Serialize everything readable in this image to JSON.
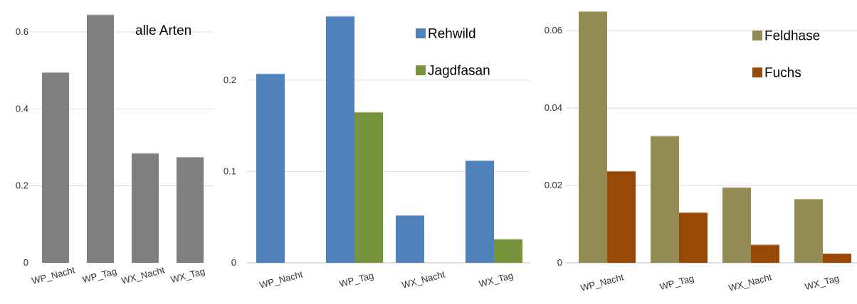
{
  "chart_data": [
    {
      "type": "bar",
      "categories": [
        "WP_Nacht",
        "WP_Tag",
        "WX_Nacht",
        "WX_Tag"
      ],
      "series": [
        {
          "name": "",
          "values": [
            0.495,
            0.645,
            0.285,
            0.275
          ],
          "color": "#7f7f7f"
        }
      ],
      "annotation": "alle Arten",
      "yticks": [
        "0",
        "0.2",
        "0.4",
        "0.6"
      ],
      "ytick_values": [
        0,
        0.2,
        0.4,
        0.6
      ],
      "ylim": [
        0,
        0.65
      ],
      "grid": true,
      "legend": "none"
    },
    {
      "type": "bar",
      "categories": [
        "WP_Nacht",
        "WP_Tag",
        "WX_Nacht",
        "WX_Tag"
      ],
      "series": [
        {
          "name": "Rehwild",
          "values": [
            0.207,
            0.27,
            0.052,
            0.112
          ],
          "color": "#4f81bd"
        },
        {
          "name": "Jagdfasan",
          "values": [
            0,
            0.165,
            0,
            0.026
          ],
          "color": "#77933c"
        }
      ],
      "yticks": [
        "0",
        "0.1",
        "0.2"
      ],
      "ytick_values": [
        0,
        0.1,
        0.2
      ],
      "ylim": [
        0,
        0.275
      ],
      "grid": true,
      "legend": "top-right"
    },
    {
      "type": "bar",
      "categories": [
        "WP_Nacht",
        "WP_Tag",
        "WX_Nacht",
        "WX_Tag"
      ],
      "series": [
        {
          "name": "Feldhase",
          "values": [
            0.065,
            0.0328,
            0.0195,
            0.0165
          ],
          "color": "#948a54"
        },
        {
          "name": "Fuchs",
          "values": [
            0.0237,
            0.013,
            0.0047,
            0.0024
          ],
          "color": "#984807"
        }
      ],
      "yticks": [
        "0",
        "0.02",
        "0.04",
        "0.06"
      ],
      "ytick_values": [
        0,
        0.02,
        0.04,
        0.06
      ],
      "ylim": [
        0,
        0.066
      ],
      "grid": true,
      "legend": "top-right"
    }
  ]
}
